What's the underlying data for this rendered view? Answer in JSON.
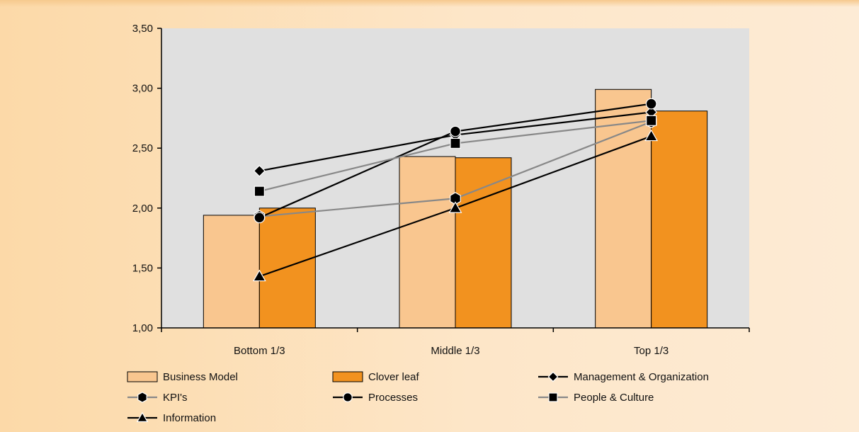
{
  "chart_data": {
    "type": "bar",
    "categories": [
      "Bottom 1/3",
      "Middle 1/3",
      "Top 1/3"
    ],
    "ylim": [
      1.0,
      3.5
    ],
    "yticks": [
      "1,00",
      "1,50",
      "2,00",
      "2,50",
      "3,00",
      "3,50"
    ],
    "ytick_values": [
      1.0,
      1.5,
      2.0,
      2.5,
      3.0,
      3.5
    ],
    "title": "",
    "xlabel": "",
    "ylabel": "",
    "grid": false,
    "legend": "bottom",
    "plot_background": "#e0e0e0",
    "bar_series": [
      {
        "name": "Business Model",
        "values": [
          1.94,
          2.43,
          2.99
        ],
        "color": "#f9c68f"
      },
      {
        "name": "Clover leaf",
        "values": [
          2.0,
          2.42,
          2.81
        ],
        "color": "#f2921f"
      }
    ],
    "line_series": [
      {
        "name": "Management & Organization",
        "values": [
          2.31,
          2.61,
          2.8
        ],
        "color": "#000000",
        "marker": "diamond-icon"
      },
      {
        "name": "KPI's",
        "values": [
          1.93,
          2.08,
          2.72
        ],
        "color": "#888888",
        "marker": "hexagon-icon"
      },
      {
        "name": "Processes",
        "values": [
          1.92,
          2.64,
          2.87
        ],
        "color": "#000000",
        "marker": "circle-icon"
      },
      {
        "name": "People & Culture",
        "values": [
          2.14,
          2.54,
          2.73
        ],
        "color": "#888888",
        "marker": "square-icon"
      },
      {
        "name": "Information",
        "values": [
          1.43,
          2.0,
          2.6
        ],
        "color": "#000000",
        "marker": "triangle-icon"
      }
    ]
  }
}
